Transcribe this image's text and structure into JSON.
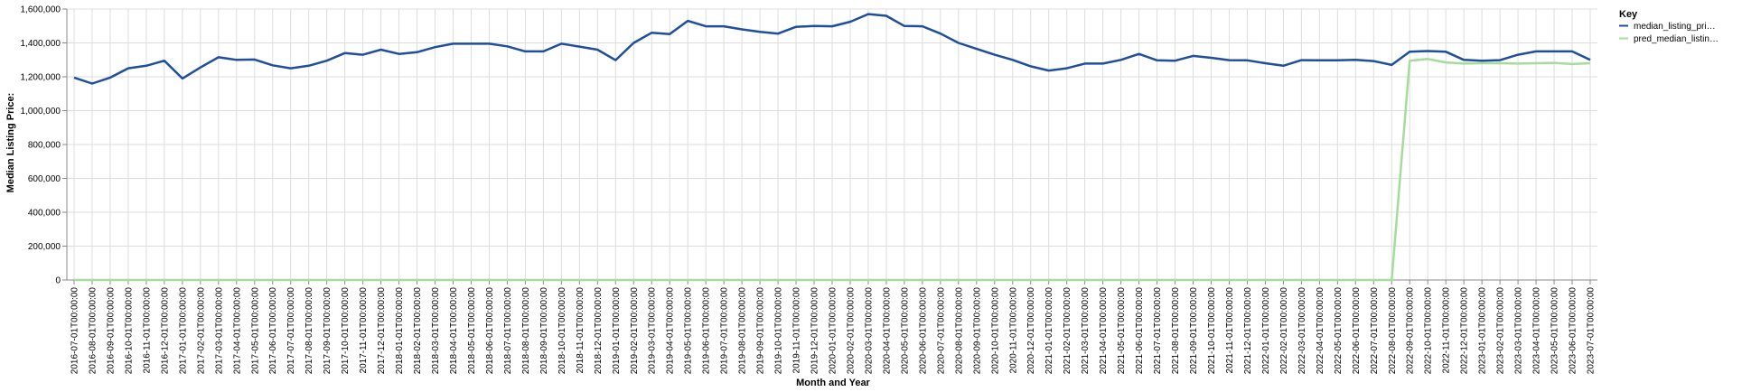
{
  "chart_data": {
    "type": "line",
    "xlabel": "Month and Year",
    "ylabel": "Median Listing Price:",
    "ylim": [
      0,
      1600000
    ],
    "yticks": [
      "0",
      "200,000",
      "400,000",
      "600,000",
      "800,000",
      "1,000,000",
      "1,200,000",
      "1,400,000",
      "1,600,000"
    ],
    "grid": true,
    "legend": {
      "title": "Key",
      "placement": "top-right"
    },
    "x": [
      "2016-07-01T00:00:00",
      "2016-08-01T00:00:00",
      "2016-09-01T00:00:00",
      "2016-10-01T00:00:00",
      "2016-11-01T00:00:00",
      "2016-12-01T00:00:00",
      "2017-01-01T00:00:00",
      "2017-02-01T00:00:00",
      "2017-03-01T00:00:00",
      "2017-04-01T00:00:00",
      "2017-05-01T00:00:00",
      "2017-06-01T00:00:00",
      "2017-07-01T00:00:00",
      "2017-08-01T00:00:00",
      "2017-09-01T00:00:00",
      "2017-10-01T00:00:00",
      "2017-11-01T00:00:00",
      "2017-12-01T00:00:00",
      "2018-01-01T00:00:00",
      "2018-02-01T00:00:00",
      "2018-03-01T00:00:00",
      "2018-04-01T00:00:00",
      "2018-05-01T00:00:00",
      "2018-06-01T00:00:00",
      "2018-07-01T00:00:00",
      "2018-08-01T00:00:00",
      "2018-09-01T00:00:00",
      "2018-10-01T00:00:00",
      "2018-11-01T00:00:00",
      "2018-12-01T00:00:00",
      "2019-01-01T00:00:00",
      "2019-02-01T00:00:00",
      "2019-03-01T00:00:00",
      "2019-04-01T00:00:00",
      "2019-05-01T00:00:00",
      "2019-06-01T00:00:00",
      "2019-07-01T00:00:00",
      "2019-08-01T00:00:00",
      "2019-09-01T00:00:00",
      "2019-10-01T00:00:00",
      "2019-11-01T00:00:00",
      "2019-12-01T00:00:00",
      "2020-01-01T00:00:00",
      "2020-02-01T00:00:00",
      "2020-03-01T00:00:00",
      "2020-04-01T00:00:00",
      "2020-05-01T00:00:00",
      "2020-06-01T00:00:00",
      "2020-07-01T00:00:00",
      "2020-08-01T00:00:00",
      "2020-09-01T00:00:00",
      "2020-10-01T00:00:00",
      "2020-11-01T00:00:00",
      "2020-12-01T00:00:00",
      "2021-01-01T00:00:00",
      "2021-02-01T00:00:00",
      "2021-03-01T00:00:00",
      "2021-04-01T00:00:00",
      "2021-05-01T00:00:00",
      "2021-06-01T00:00:00",
      "2021-07-01T00:00:00",
      "2021-08-01T00:00:00",
      "2021-09-01T00:00:00",
      "2021-10-01T00:00:00",
      "2021-11-01T00:00:00",
      "2021-12-01T00:00:00",
      "2022-01-01T00:00:00",
      "2022-02-01T00:00:00",
      "2022-03-01T00:00:00",
      "2022-04-01T00:00:00",
      "2022-05-01T00:00:00",
      "2022-06-01T00:00:00",
      "2022-07-01T00:00:00",
      "2022-08-01T00:00:00",
      "2022-09-01T00:00:00",
      "2022-10-01T00:00:00",
      "2022-11-01T00:00:00",
      "2022-12-01T00:00:00",
      "2023-01-01T00:00:00",
      "2023-02-01T00:00:00",
      "2023-03-01T00:00:00",
      "2023-04-01T00:00:00",
      "2023-05-01T00:00:00",
      "2023-06-01T00:00:00",
      "2023-07-01T00:00:00"
    ],
    "series": [
      {
        "name": "median_listing_pri…",
        "color": "#1f4e9c",
        "values": [
          1195000,
          1160000,
          1195000,
          1250000,
          1265000,
          1295000,
          1190000,
          1255000,
          1315000,
          1300000,
          1302000,
          1268000,
          1250000,
          1265000,
          1295000,
          1340000,
          1330000,
          1360000,
          1335000,
          1345000,
          1375000,
          1395000,
          1395000,
          1395000,
          1380000,
          1350000,
          1350000,
          1395000,
          1378000,
          1360000,
          1298000,
          1400000,
          1460000,
          1452000,
          1530000,
          1498000,
          1498000,
          1480000,
          1465000,
          1455000,
          1495000,
          1500000,
          1498000,
          1525000,
          1570000,
          1560000,
          1500000,
          1498000,
          1455000,
          1400000,
          1365000,
          1330000,
          1300000,
          1262000,
          1237000,
          1250000,
          1278000,
          1278000,
          1300000,
          1335000,
          1297000,
          1295000,
          1323000,
          1312000,
          1298000,
          1297000,
          1280000,
          1265000,
          1298000,
          1297000,
          1297000,
          1300000,
          1293000,
          1270000,
          1348000,
          1352000,
          1348000,
          1300000,
          1295000,
          1298000,
          1330000,
          1350000,
          1350000,
          1350000,
          1300000
        ]
      },
      {
        "name": "pred_median_listin…",
        "color": "#a4dc9a",
        "values": [
          0,
          0,
          0,
          0,
          0,
          0,
          0,
          0,
          0,
          0,
          0,
          0,
          0,
          0,
          0,
          0,
          0,
          0,
          0,
          0,
          0,
          0,
          0,
          0,
          0,
          0,
          0,
          0,
          0,
          0,
          0,
          0,
          0,
          0,
          0,
          0,
          0,
          0,
          0,
          0,
          0,
          0,
          0,
          0,
          0,
          0,
          0,
          0,
          0,
          0,
          0,
          0,
          0,
          0,
          0,
          0,
          0,
          0,
          0,
          0,
          0,
          0,
          0,
          0,
          0,
          0,
          0,
          0,
          0,
          0,
          0,
          0,
          0,
          0,
          1295000,
          1305000,
          1285000,
          1278000,
          1280000,
          1280000,
          1278000,
          1280000,
          1282000,
          1275000,
          1280000
        ]
      }
    ]
  }
}
